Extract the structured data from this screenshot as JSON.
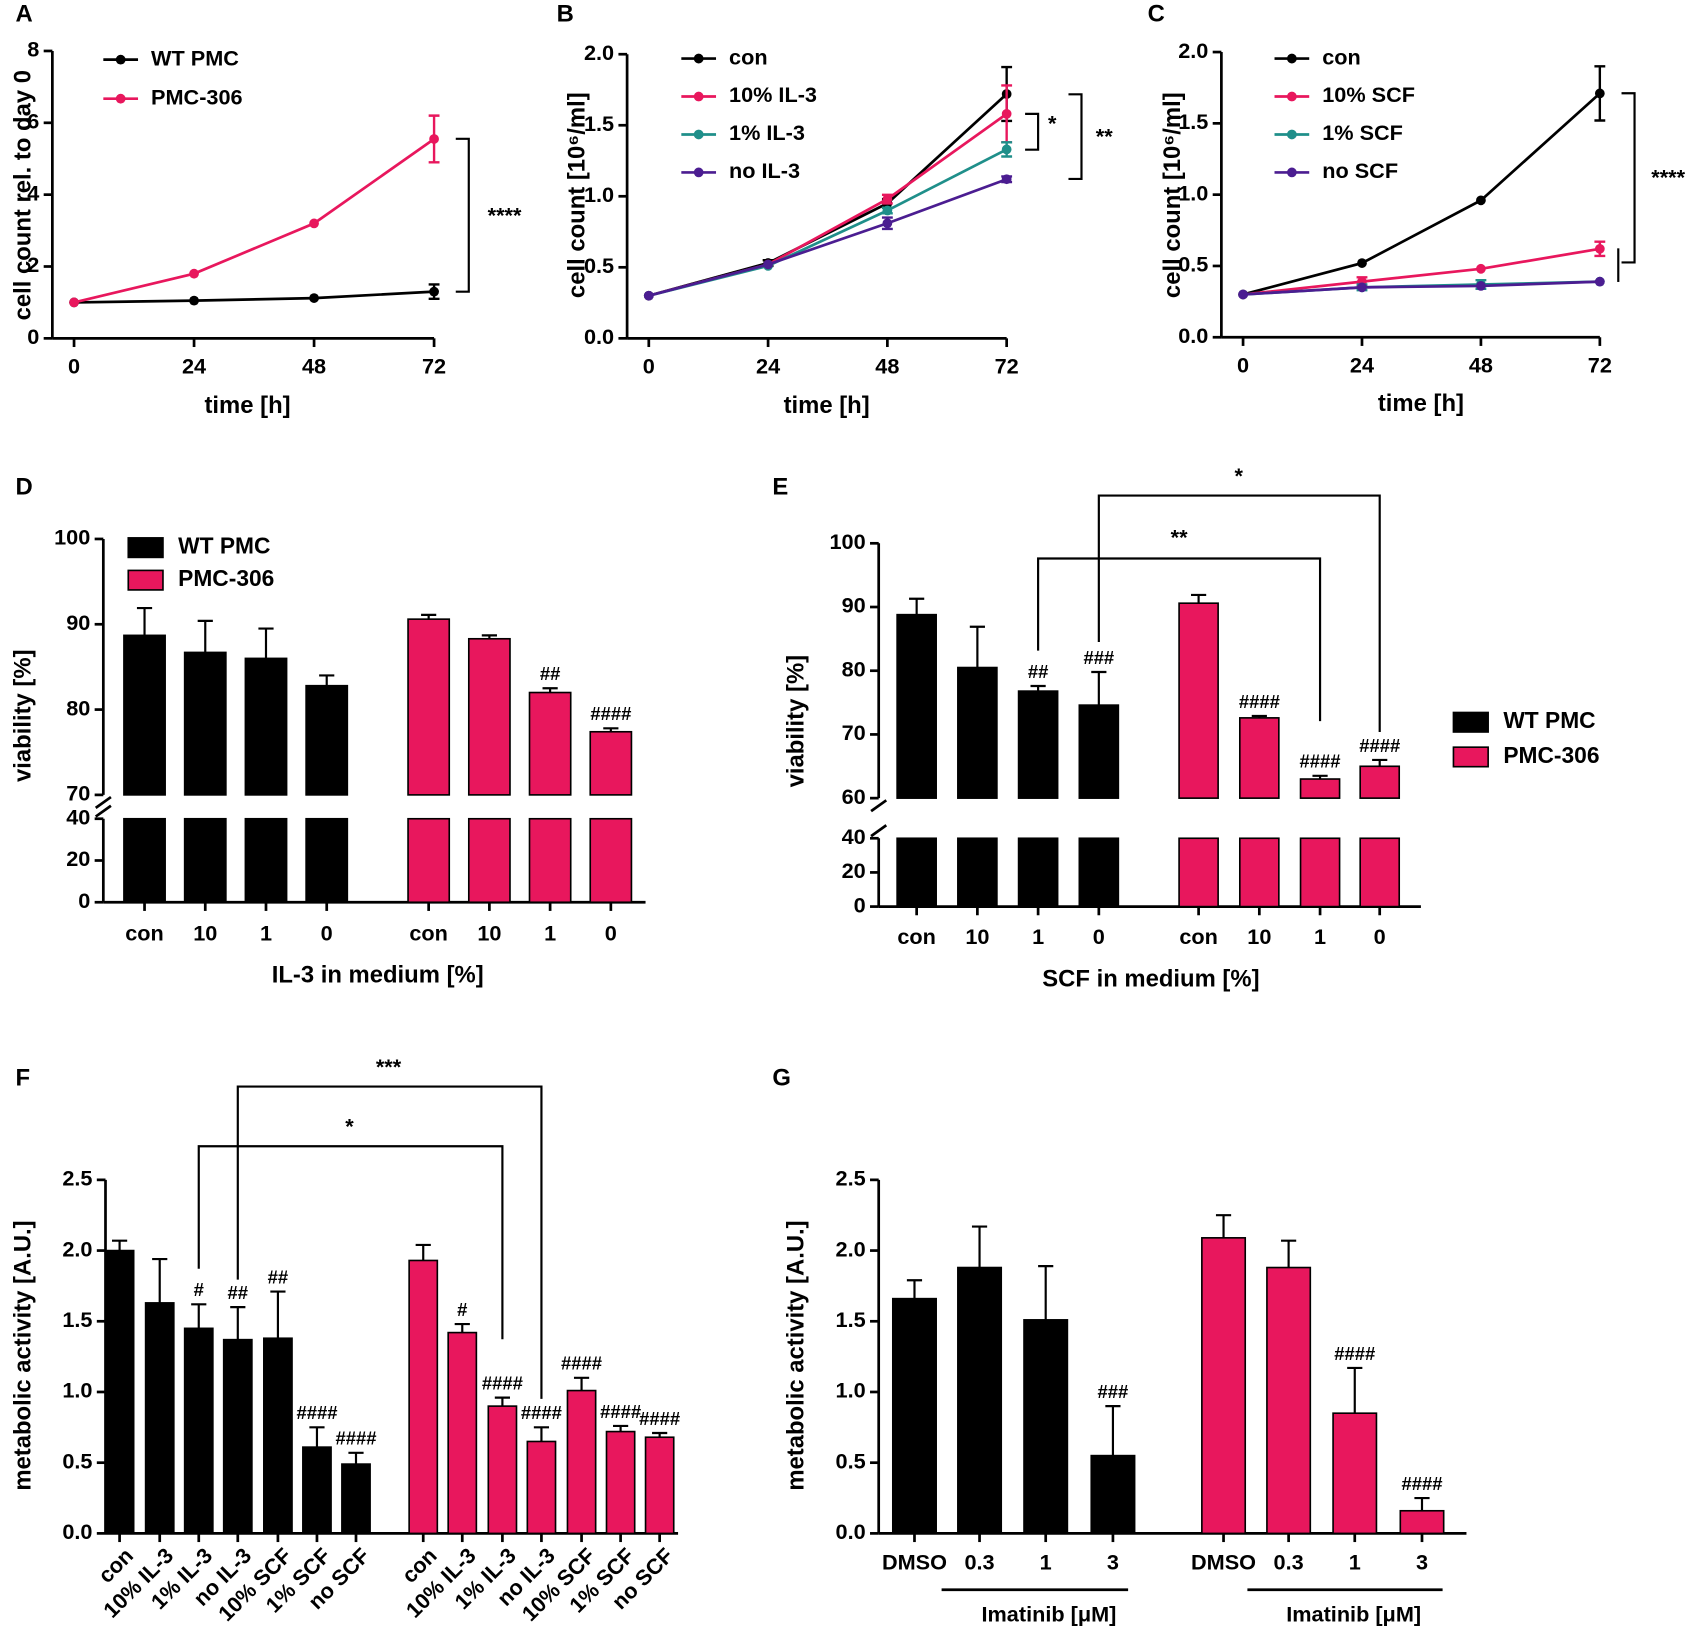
{
  "chart_data": [
    {
      "type": "line",
      "panel": "A",
      "x": [
        0,
        24,
        48,
        72
      ],
      "xlim": [
        0,
        72
      ],
      "xticks": [
        0,
        24,
        48,
        72
      ],
      "ylim": [
        0,
        8
      ],
      "yticks": [
        0,
        2,
        4,
        6,
        8
      ],
      "xlabel": "time [h]",
      "ylabel": "cell count rel. to day 0",
      "series": [
        {
          "name": "WT PMC",
          "color": "#000000",
          "values": [
            1,
            1.05,
            1.12,
            1.3
          ],
          "errors": [
            0,
            0,
            0,
            0.2
          ]
        },
        {
          "name": "PMC-306",
          "color": "#e8175d",
          "values": [
            1,
            1.8,
            3.2,
            5.55
          ],
          "errors": [
            0,
            0,
            0,
            0.65
          ]
        }
      ],
      "significance": [
        "****"
      ]
    },
    {
      "type": "line",
      "panel": "B",
      "x": [
        0,
        24,
        48,
        72
      ],
      "xlim": [
        0,
        72
      ],
      "xticks": [
        0,
        24,
        48,
        72
      ],
      "ylim": [
        0,
        2
      ],
      "yticks": [
        {
          "value": 0,
          "label": "0.0"
        },
        {
          "value": 0.5,
          "label": "0.5"
        },
        {
          "value": 1,
          "label": "1.0"
        },
        {
          "value": 1.5,
          "label": "1.5"
        },
        {
          "value": 2,
          "label": "2.0"
        }
      ],
      "xlabel": "time [h]",
      "ylabel": "cell count [10⁶/ml]",
      "series": [
        {
          "name": "con",
          "color": "#000000",
          "values": [
            0.3,
            0.53,
            0.95,
            1.72
          ],
          "errors": [
            0,
            0.02,
            0.03,
            0.19
          ]
        },
        {
          "name": "10% IL-3",
          "color": "#e8175d",
          "values": [
            0.3,
            0.52,
            0.98,
            1.58
          ],
          "errors": [
            0,
            0,
            0.03,
            0.2
          ]
        },
        {
          "name": "1% IL-3",
          "color": "#1f8f8a",
          "values": [
            0.3,
            0.51,
            0.9,
            1.33
          ],
          "errors": [
            0,
            0,
            0.02,
            0.05
          ]
        },
        {
          "name": "no IL-3",
          "color": "#4b1d91",
          "values": [
            0.3,
            0.52,
            0.81,
            1.12
          ],
          "errors": [
            0,
            0,
            0.04,
            0.02
          ]
        }
      ],
      "significance": [
        "*",
        "**"
      ]
    },
    {
      "type": "line",
      "panel": "C",
      "x": [
        0,
        24,
        48,
        72
      ],
      "xlim": [
        0,
        72
      ],
      "xticks": [
        0,
        24,
        48,
        72
      ],
      "ylim": [
        0,
        2
      ],
      "yticks": [
        {
          "value": 0,
          "label": "0.0"
        },
        {
          "value": 0.5,
          "label": "0.5"
        },
        {
          "value": 1,
          "label": "1.0"
        },
        {
          "value": 1.5,
          "label": "1.5"
        },
        {
          "value": 2,
          "label": "2.0"
        }
      ],
      "xlabel": "time [h]",
      "ylabel": "cell count [10⁶/ml]",
      "series": [
        {
          "name": "con",
          "color": "#000000",
          "values": [
            0.3,
            0.52,
            0.96,
            1.71
          ],
          "errors": [
            0,
            0,
            0,
            0.19
          ]
        },
        {
          "name": "10% SCF",
          "color": "#e8175d",
          "values": [
            0.3,
            0.39,
            0.48,
            0.62
          ],
          "errors": [
            0,
            0.03,
            0,
            0.05
          ]
        },
        {
          "name": "1% SCF",
          "color": "#1f8f8a",
          "values": [
            0.3,
            0.35,
            0.37,
            0.39
          ],
          "errors": [
            0,
            0.02,
            0.03,
            0
          ]
        },
        {
          "name": "no SCF",
          "color": "#4b1d91",
          "values": [
            0.3,
            0.35,
            0.36,
            0.39
          ],
          "errors": [
            0,
            0,
            0,
            0
          ]
        }
      ],
      "significance": [
        "****"
      ]
    },
    {
      "type": "bar",
      "panel": "D",
      "categories": [
        "con",
        "10",
        "1",
        "0"
      ],
      "ylim": [
        0,
        100
      ],
      "ybreak": [
        40,
        70
      ],
      "yticks": [
        0,
        20,
        40,
        70,
        80,
        90,
        100
      ],
      "xlabel": "IL-3 in medium [%]",
      "ylabel": "viability [%]",
      "series": [
        {
          "name": "WT PMC",
          "color": "#000000",
          "values": [
            88.7,
            86.7,
            86,
            82.8
          ],
          "errors": [
            3.2,
            3.7,
            3.5,
            1.2
          ],
          "annotations": [
            null,
            null,
            null,
            null
          ]
        },
        {
          "name": "PMC-306",
          "color": "#e8175d",
          "values": [
            90.6,
            88.3,
            82,
            77.4
          ],
          "errors": [
            0.5,
            0.4,
            0.5,
            0.4
          ],
          "annotations": [
            null,
            null,
            "##",
            "####"
          ]
        }
      ]
    },
    {
      "type": "bar",
      "panel": "E",
      "categories": [
        "con",
        "10",
        "1",
        "0"
      ],
      "ylim": [
        0,
        100
      ],
      "ybreak": [
        40,
        60
      ],
      "yticks": [
        0,
        20,
        40,
        60,
        70,
        80,
        90,
        100
      ],
      "xlabel": "SCF in medium [%]",
      "ylabel": "viability [%]",
      "series": [
        {
          "name": "WT PMC",
          "color": "#000000",
          "values": [
            88.8,
            80.5,
            76.8,
            74.6
          ],
          "errors": [
            2.5,
            6.4,
            0.8,
            5.2
          ],
          "annotations": [
            null,
            null,
            "##",
            "###"
          ]
        },
        {
          "name": "PMC-306",
          "color": "#e8175d",
          "values": [
            90.6,
            72.6,
            63,
            65
          ],
          "errors": [
            1.3,
            0.3,
            0.5,
            1
          ],
          "annotations": [
            null,
            "####",
            "####",
            "####"
          ]
        }
      ],
      "significance": [
        "**",
        "*"
      ]
    },
    {
      "type": "bar",
      "panel": "F",
      "categories": [
        "con",
        "10% IL-3",
        "1% IL-3",
        "no IL-3",
        "10% SCF",
        "1% SCF",
        "no SCF"
      ],
      "ylim": [
        0,
        2.5
      ],
      "yticks": [
        {
          "value": 0,
          "label": "0.0"
        },
        {
          "value": 0.5,
          "label": "0.5"
        },
        {
          "value": 1,
          "label": "1.0"
        },
        {
          "value": 1.5,
          "label": "1.5"
        },
        {
          "value": 2,
          "label": "2.0"
        },
        {
          "value": 2.5,
          "label": "2.5"
        }
      ],
      "ylabel": "metabolic activity [A.U.]",
      "series": [
        {
          "color": "#000000",
          "values": [
            2.0,
            1.63,
            1.45,
            1.37,
            1.38,
            0.61,
            0.49
          ],
          "errors": [
            0.07,
            0.31,
            0.17,
            0.23,
            0.33,
            0.14,
            0.08
          ],
          "annotations": [
            null,
            null,
            "#",
            "##",
            "##",
            "####",
            "####"
          ]
        },
        {
          "color": "#e8175d",
          "values": [
            1.93,
            1.42,
            0.9,
            0.65,
            1.01,
            0.72,
            0.68
          ],
          "errors": [
            0.11,
            0.06,
            0.06,
            0.1,
            0.09,
            0.04,
            0.03
          ],
          "annotations": [
            null,
            "#",
            "####",
            "####",
            "####",
            "####",
            "####"
          ]
        }
      ],
      "significance": [
        "*",
        "***"
      ]
    },
    {
      "type": "bar",
      "panel": "G",
      "categories": [
        "DMSO",
        "0.3",
        "1",
        "3"
      ],
      "ylim": [
        0,
        2.5
      ],
      "yticks": [
        {
          "value": 0,
          "label": "0.0"
        },
        {
          "value": 0.5,
          "label": "0.5"
        },
        {
          "value": 1,
          "label": "1.0"
        },
        {
          "value": 1.5,
          "label": "1.5"
        },
        {
          "value": 2,
          "label": "2.0"
        },
        {
          "value": 2.5,
          "label": "2.5"
        }
      ],
      "ylabel": "metabolic activity [A.U.]",
      "group_labels": [
        "Imatinib [μM]",
        "Imatinib [μM]"
      ],
      "series": [
        {
          "color": "#000000",
          "values": [
            1.66,
            1.88,
            1.51,
            0.55
          ],
          "errors": [
            0.13,
            0.29,
            0.38,
            0.35
          ],
          "annotations": [
            null,
            null,
            null,
            "###"
          ]
        },
        {
          "color": "#e8175d",
          "values": [
            2.09,
            1.88,
            0.85,
            0.16
          ],
          "errors": [
            0.16,
            0.19,
            0.32,
            0.09
          ],
          "annotations": [
            null,
            null,
            "####",
            "####"
          ]
        }
      ]
    }
  ]
}
